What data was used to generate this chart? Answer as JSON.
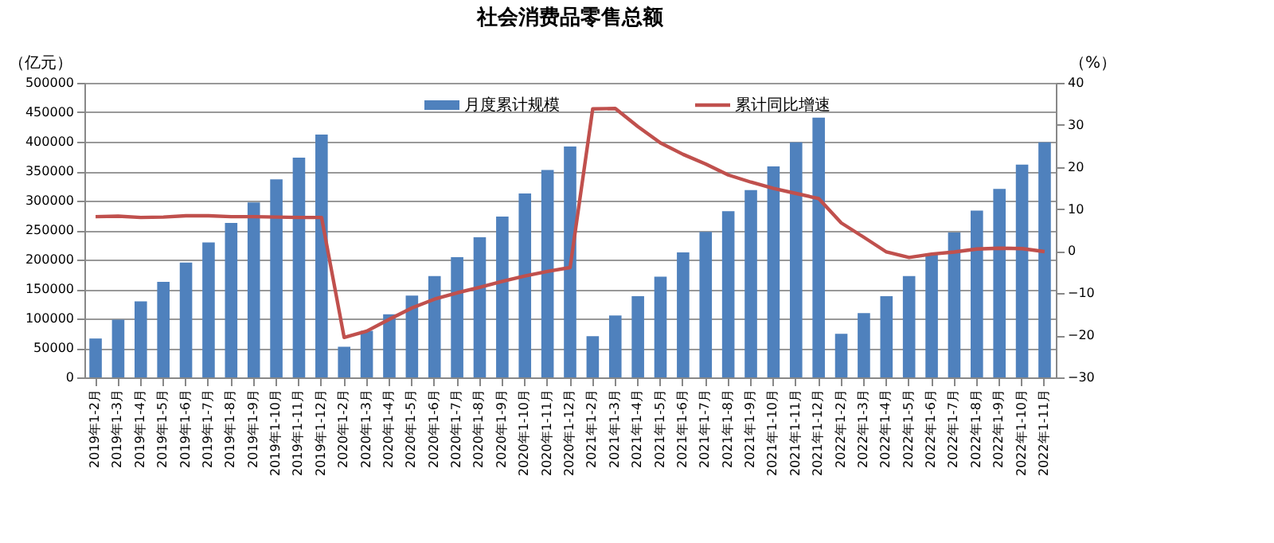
{
  "chart_data": {
    "type": "bar",
    "title": "社会消费品零售总额",
    "ylabel": "（亿元）",
    "y2label": "（%）",
    "categories": [
      "2019年1-2月",
      "2019年1-3月",
      "2019年1-4月",
      "2019年1-5月",
      "2019年1-6月",
      "2019年1-7月",
      "2019年1-8月",
      "2019年1-9月",
      "2019年1-10月",
      "2019年1-11月",
      "2019年1-12月",
      "2020年1-2月",
      "2020年1-3月",
      "2020年1-4月",
      "2020年1-5月",
      "2020年1-6月",
      "2020年1-7月",
      "2020年1-8月",
      "2020年1-9月",
      "2020年1-10月",
      "2020年1-11月",
      "2020年1-12月",
      "2021年1-2月",
      "2021年1-3月",
      "2021年1-4月",
      "2021年1-5月",
      "2021年1-6月",
      "2021年1-7月",
      "2021年1-8月",
      "2021年1-9月",
      "2021年1-10月",
      "2021年1-11月",
      "2021年1-12月",
      "2022年1-2月",
      "2022年1-3月",
      "2022年1-4月",
      "2022年1-5月",
      "2022年1-6月",
      "2022年1-7月",
      "2022年1-8月",
      "2022年1-9月",
      "2022年1-10月",
      "2022年1-11月"
    ],
    "series": [
      {
        "name": "月度累计规模",
        "color": "#4f81bd",
        "values": [
          66000,
          98000,
          129000,
          162000,
          195000,
          229000,
          262000,
          297000,
          336000,
          373000,
          412000,
          52000,
          79000,
          107000,
          139000,
          172000,
          204000,
          238000,
          273000,
          312000,
          352000,
          392000,
          70000,
          105000,
          138000,
          171000,
          212000,
          247000,
          282000,
          318000,
          358000,
          399000,
          441000,
          74000,
          109000,
          138000,
          172000,
          210000,
          246000,
          283000,
          320000,
          361000,
          399000
        ]
      },
      {
        "name": "累计同比增速",
        "type": "line",
        "axis": "y2",
        "color": "#c0504d",
        "values": [
          8.2,
          8.3,
          8.0,
          8.1,
          8.4,
          8.4,
          8.2,
          8.2,
          8.1,
          8.0,
          8.0,
          -20.5,
          -19.0,
          -16.2,
          -13.5,
          -11.4,
          -9.9,
          -8.6,
          -7.2,
          -5.9,
          -4.8,
          -3.9,
          33.8,
          33.9,
          29.6,
          25.7,
          23.0,
          20.7,
          18.1,
          16.4,
          14.9,
          13.7,
          12.5,
          6.7,
          3.3,
          -0.2,
          -1.5,
          -0.7,
          -0.2,
          0.5,
          0.7,
          0.6,
          -0.1
        ]
      }
    ],
    "ylim": [
      0,
      500000
    ],
    "yticks": [
      0,
      50000,
      100000,
      150000,
      200000,
      250000,
      300000,
      350000,
      400000,
      450000,
      500000
    ],
    "y2lim": [
      -30,
      40
    ],
    "y2ticks": [
      -30,
      -20,
      -10,
      0,
      10,
      20,
      30,
      40
    ],
    "grid": "y",
    "legend": "top",
    "marker": "none",
    "line_style": "solid"
  }
}
